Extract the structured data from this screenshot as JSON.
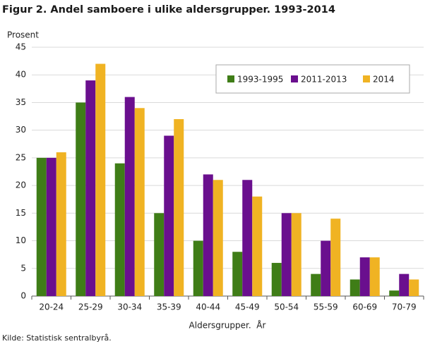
{
  "chart_data": {
    "type": "bar",
    "title": "Figur 2. Andel samboere i ulike aldersgrupper. 1993-2014",
    "y_label": "Prosent",
    "x_label": "Aldersgrupper.  År",
    "source": "Kilde: Statistisk sentralbyrå.",
    "categories": [
      "20-24",
      "25-29",
      "30-34",
      "35-39",
      "40-44",
      "45-49",
      "50-54",
      "55-59",
      "60-69",
      "70-79"
    ],
    "series": [
      {
        "name": "1993-1995",
        "color": "#3f7d17",
        "values": [
          25,
          35,
          24,
          15,
          10,
          8,
          6,
          4,
          3,
          1
        ]
      },
      {
        "name": "2011-2013",
        "color": "#6a0f8e",
        "values": [
          25,
          39,
          36,
          29,
          22,
          21,
          15,
          10,
          7,
          4
        ]
      },
      {
        "name": "2014",
        "color": "#f0b323",
        "values": [
          26,
          42,
          34,
          32,
          21,
          18,
          15,
          14,
          7,
          3
        ]
      }
    ],
    "ylim": [
      0,
      45
    ],
    "yticks": [
      0,
      5,
      10,
      15,
      20,
      25,
      30,
      35,
      40,
      45
    ],
    "grid": true,
    "legend": "top-right"
  }
}
